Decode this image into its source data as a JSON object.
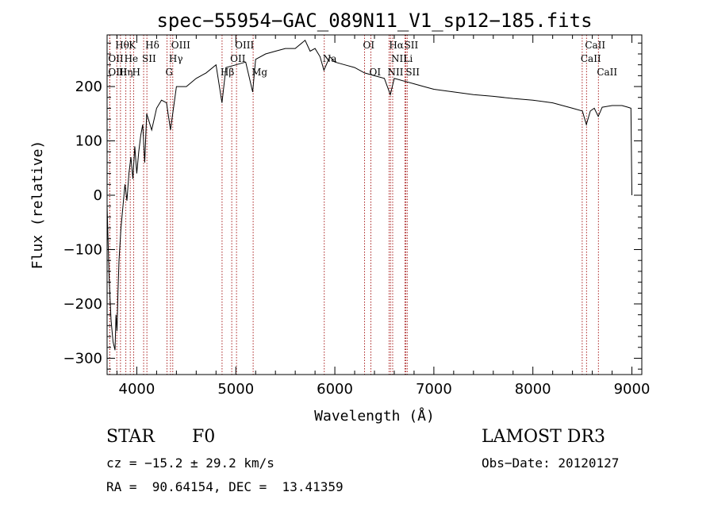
{
  "chart_data": {
    "type": "line",
    "title": "spec−55954−GAC_089N11_V1_sp12−185.fits",
    "xlabel": "Wavelength (Å)",
    "ylabel": "Flux (relative)",
    "xlim": [
      3700,
      9100
    ],
    "ylim": [
      -330,
      295
    ],
    "x_ticks": [
      4000,
      5000,
      6000,
      7000,
      8000,
      9000
    ],
    "x_tick_labels": [
      "4000",
      "5000",
      "6000",
      "7000",
      "8000",
      "9000"
    ],
    "y_ticks": [
      -300,
      -200,
      -100,
      0,
      100,
      200
    ],
    "y_tick_labels": [
      "−300",
      "−200",
      "−100",
      "0",
      "100",
      "200"
    ],
    "series": [
      {
        "name": "spectrum",
        "x": [
          3700,
          3720,
          3740,
          3760,
          3780,
          3790,
          3800,
          3810,
          3820,
          3840,
          3860,
          3880,
          3900,
          3920,
          3940,
          3960,
          3980,
          4000,
          4020,
          4040,
          4060,
          4080,
          4100,
          4150,
          4200,
          4250,
          4300,
          4340,
          4400,
          4500,
          4600,
          4700,
          4800,
          4860,
          4900,
          5000,
          5100,
          5170,
          5200,
          5300,
          5400,
          5500,
          5600,
          5700,
          5750,
          5800,
          5850,
          5890,
          5950,
          6000,
          6100,
          6200,
          6300,
          6400,
          6500,
          6560,
          6600,
          6700,
          6800,
          6900,
          7000,
          7200,
          7400,
          7600,
          7800,
          8000,
          8200,
          8400,
          8500,
          8540,
          8580,
          8620,
          8660,
          8700,
          8800,
          8900,
          8960,
          8990,
          9000
        ],
        "y": [
          -20,
          -150,
          -230,
          -270,
          -285,
          -220,
          -250,
          -180,
          -120,
          -60,
          -20,
          20,
          -10,
          40,
          70,
          30,
          90,
          40,
          80,
          110,
          130,
          60,
          150,
          120,
          160,
          175,
          170,
          120,
          200,
          200,
          215,
          225,
          240,
          170,
          235,
          240,
          245,
          190,
          250,
          260,
          265,
          270,
          270,
          285,
          265,
          270,
          255,
          230,
          255,
          245,
          240,
          235,
          225,
          220,
          215,
          185,
          215,
          210,
          205,
          200,
          195,
          190,
          185,
          182,
          178,
          175,
          170,
          160,
          155,
          130,
          155,
          160,
          145,
          162,
          165,
          165,
          162,
          160,
          0
        ]
      }
    ],
    "spectral_lines": [
      {
        "label": "Hθ",
        "x": 3798,
        "row": 1
      },
      {
        "label": "K",
        "x": 3934,
        "row": 1
      },
      {
        "label": "Hδ",
        "x": 4102,
        "row": 1
      },
      {
        "label": "OIII",
        "x": 4363,
        "row": 1
      },
      {
        "label": "OIII",
        "x": 5007,
        "row": 1
      },
      {
        "label": "OI",
        "x": 6300,
        "row": 1
      },
      {
        "label": "Hα",
        "x": 6563,
        "row": 1
      },
      {
        "label": "SII",
        "x": 6717,
        "row": 1
      },
      {
        "label": "CaII",
        "x": 8542,
        "row": 1
      },
      {
        "label": "OII",
        "x": 3727,
        "row": 2
      },
      {
        "label": "He",
        "x": 3889,
        "row": 2
      },
      {
        "label": "SII",
        "x": 4069,
        "row": 2
      },
      {
        "label": "Hγ",
        "x": 4340,
        "row": 2
      },
      {
        "label": "OII",
        "x": 4959,
        "row": 2
      },
      {
        "label": "Na",
        "x": 5893,
        "row": 2
      },
      {
        "label": "NII",
        "x": 6584,
        "row": 2
      },
      {
        "label": "Li",
        "x": 6708,
        "row": 2
      },
      {
        "label": "CaII",
        "x": 8498,
        "row": 2
      },
      {
        "label": "OIII",
        "x": 3727,
        "row": 3
      },
      {
        "label": "Hη",
        "x": 3835,
        "row": 3
      },
      {
        "label": "H",
        "x": 3968,
        "row": 3
      },
      {
        "label": "G",
        "x": 4305,
        "row": 3
      },
      {
        "label": "Hβ",
        "x": 4861,
        "row": 3
      },
      {
        "label": "Mg",
        "x": 5175,
        "row": 3
      },
      {
        "label": "OI",
        "x": 6364,
        "row": 3
      },
      {
        "label": "NII",
        "x": 6548,
        "row": 3
      },
      {
        "label": "SII",
        "x": 6731,
        "row": 3
      },
      {
        "label": "CaII",
        "x": 8662,
        "row": 3
      }
    ]
  },
  "info": {
    "object_class": "STAR",
    "subclass": "F0",
    "survey": "LAMOST DR3",
    "redshift": "cz = −15.2 ± 29.2 km/s",
    "obs_date": "Obs−Date: 20120127",
    "coords": "RA =  90.64154, DEC =  13.41359"
  }
}
